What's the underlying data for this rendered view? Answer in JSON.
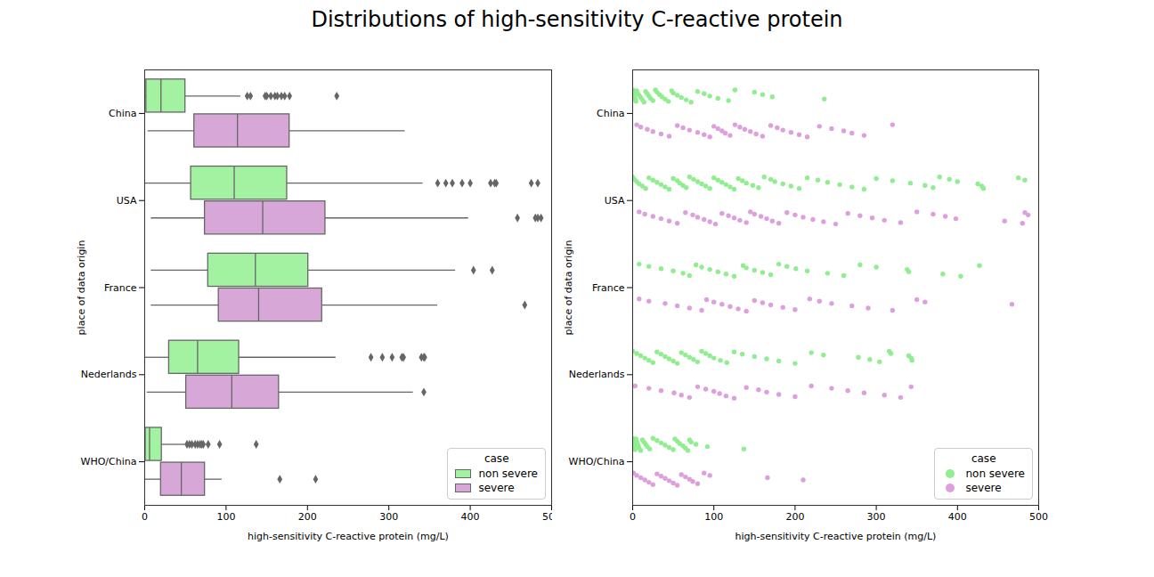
{
  "title": "Distributions of high-sensitivity C-reactive protein",
  "chart_data": [
    {
      "type": "box",
      "orientation": "horizontal",
      "xlabel": "high-sensitivity C-reactive protein (mg/L)",
      "ylabel": "place of data origin",
      "categories": [
        "China",
        "USA",
        "France",
        "Nederlands",
        "WHO/China"
      ],
      "xlim": [
        0,
        500
      ],
      "xticks": [
        0,
        100,
        200,
        300,
        400,
        500
      ],
      "grid": false,
      "legend": "lower right",
      "legend_title": "case",
      "marker": "diamond",
      "series": [
        {
          "name": "non severe",
          "color": "#a2f2a2",
          "values": [
            {
              "whisker_low": 0.5,
              "q1": 2,
              "median": 20,
              "q3": 50,
              "whisker_high": 118,
              "outliers": [
                126,
                130,
                148,
                150,
                155,
                160,
                163,
                168,
                172,
                178,
                236
              ]
            },
            {
              "whisker_low": 0,
              "q1": 57,
              "median": 110,
              "q3": 175,
              "whisker_high": 342,
              "outliers": [
                360,
                370,
                378,
                390,
                400,
                425,
                430,
                432,
                475,
                483
              ]
            },
            {
              "whisker_low": 8,
              "q1": 78,
              "median": 136,
              "q3": 201,
              "whisker_high": 382,
              "outliers": [
                404,
                427
              ]
            },
            {
              "whisker_low": 0,
              "q1": 30,
              "median": 65,
              "q3": 116,
              "whisker_high": 235,
              "outliers": [
                278,
                292,
                304,
                316,
                318,
                340,
                343,
                344
              ]
            },
            {
              "whisker_low": 0,
              "q1": 1,
              "median": 6,
              "q3": 21,
              "whisker_high": 50,
              "outliers": [
                52,
                55,
                58,
                62,
                65,
                68,
                70,
                72,
                78,
                92,
                137
              ]
            }
          ]
        },
        {
          "name": "severe",
          "color": "#d7a8d7",
          "values": [
            {
              "whisker_low": 4,
              "q1": 61,
              "median": 114,
              "q3": 178,
              "whisker_high": 320,
              "outliers": []
            },
            {
              "whisker_low": 8,
              "q1": 74,
              "median": 145,
              "q3": 222,
              "whisker_high": 398,
              "outliers": [
                458,
                480,
                483,
                487
              ]
            },
            {
              "whisker_low": 8,
              "q1": 91,
              "median": 140,
              "q3": 218,
              "whisker_high": 360,
              "outliers": [
                467
              ]
            },
            {
              "whisker_low": 3,
              "q1": 51,
              "median": 107,
              "q3": 165,
              "whisker_high": 330,
              "outliers": [
                343
              ]
            },
            {
              "whisker_low": 1,
              "q1": 20,
              "median": 45,
              "q3": 74,
              "whisker_high": 95,
              "outliers": [
                166,
                210
              ]
            }
          ]
        }
      ]
    },
    {
      "type": "strip",
      "xlabel": "high-sensitivity C-reactive protein (mg/L)",
      "ylabel": "place of data origin",
      "categories": [
        "China",
        "USA",
        "France",
        "Nederlands",
        "WHO/China"
      ],
      "xlim": [
        0,
        500
      ],
      "xticks": [
        0,
        100,
        200,
        300,
        400,
        500
      ],
      "grid": false,
      "legend": "lower right",
      "legend_title": "case",
      "marker": "circle",
      "series": [
        {
          "name": "non severe",
          "color": "#90ee90",
          "values": [
            [
              0.5,
              1,
              1.5,
              2,
              3,
              4,
              5,
              6,
              8,
              10,
              12,
              14,
              16,
              18,
              20,
              22,
              25,
              28,
              30,
              33,
              36,
              40,
              44,
              48,
              50,
              55,
              60,
              66,
              72,
              80,
              88,
              95,
              105,
              118,
              126,
              150,
              160,
              172,
              236
            ],
            [
              0,
              2,
              5,
              8,
              12,
              16,
              20,
              25,
              30,
              35,
              40,
              45,
              50,
              55,
              58,
              62,
              66,
              70,
              75,
              80,
              85,
              90,
              95,
              100,
              105,
              110,
              115,
              120,
              125,
              130,
              135,
              140,
              148,
              155,
              162,
              170,
              175,
              185,
              195,
              205,
              215,
              228,
              240,
              255,
              270,
              285,
              300,
              320,
              342,
              360,
              370,
              378,
              390,
              400,
              425,
              430,
              432,
              475,
              483
            ],
            [
              8,
              20,
              35,
              50,
              62,
              70,
              78,
              85,
              95,
              105,
              115,
              125,
              136,
              140,
              150,
              160,
              170,
              180,
              190,
              201,
              215,
              240,
              260,
              280,
              300,
              338,
              340,
              382,
              404,
              427
            ],
            [
              0,
              5,
              10,
              15,
              20,
              25,
              30,
              35,
              40,
              45,
              50,
              55,
              60,
              65,
              70,
              75,
              80,
              85,
              90,
              95,
              100,
              108,
              116,
              125,
              135,
              150,
              165,
              180,
              200,
              220,
              235,
              278,
              292,
              304,
              316,
              318,
              340,
              343,
              344
            ],
            [
              0,
              0.5,
              1,
              1.5,
              2,
              3,
              4,
              5,
              6,
              7,
              8,
              10,
              12,
              14,
              16,
              18,
              21,
              25,
              30,
              35,
              40,
              45,
              50,
              52,
              55,
              58,
              62,
              65,
              68,
              70,
              72,
              78,
              92,
              137
            ]
          ]
        },
        {
          "name": "severe",
          "color": "#dda0dd",
          "values": [
            [
              5,
              10,
              18,
              25,
              35,
              45,
              55,
              62,
              70,
              80,
              88,
              95,
              100,
              105,
              110,
              114,
              120,
              126,
              132,
              138,
              145,
              152,
              160,
              170,
              178,
              185,
              195,
              205,
              215,
              230,
              245,
              260,
              270,
              285,
              320
            ],
            [
              8,
              15,
              25,
              35,
              45,
              55,
              65,
              74,
              80,
              88,
              95,
              102,
              110,
              118,
              125,
              132,
              140,
              145,
              150,
              158,
              165,
              172,
              180,
              190,
              200,
              210,
              222,
              235,
              250,
              265,
              280,
              295,
              310,
              330,
              350,
              370,
              385,
              398,
              458,
              480,
              483,
              487
            ],
            [
              8,
              20,
              40,
              55,
              70,
              85,
              91,
              100,
              110,
              120,
              130,
              140,
              150,
              160,
              170,
              185,
              200,
              218,
              230,
              245,
              270,
              290,
              320,
              350,
              360,
              467
            ],
            [
              3,
              20,
              35,
              51,
              60,
              70,
              80,
              90,
              100,
              107,
              115,
              125,
              140,
              155,
              165,
              180,
              200,
              220,
              245,
              265,
              285,
              310,
              330,
              343
            ],
            [
              1,
              5,
              10,
              15,
              20,
              25,
              30,
              35,
              40,
              45,
              50,
              55,
              60,
              65,
              70,
              74,
              80,
              88,
              95,
              166,
              210
            ]
          ]
        }
      ]
    }
  ]
}
